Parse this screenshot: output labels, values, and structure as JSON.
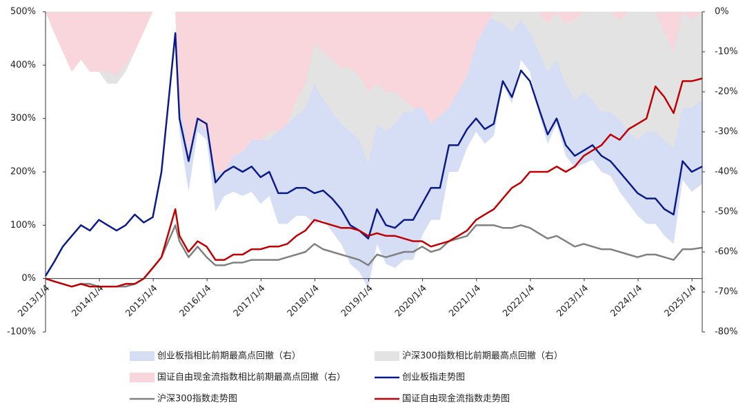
{
  "chart_data": {
    "type": "line",
    "x": [
      "2013/1/4",
      "2013/3/1",
      "2013/5/1",
      "2013/7/1",
      "2013/9/1",
      "2013/11/1",
      "2014/1/1",
      "2014/3/1",
      "2014/5/1",
      "2014/7/1",
      "2014/9/1",
      "2014/11/1",
      "2015/1/1",
      "2015/3/1",
      "2015/6/3",
      "2015/7/1",
      "2015/9/1",
      "2015/11/1",
      "2016/1/1",
      "2016/3/1",
      "2016/5/1",
      "2016/7/1",
      "2016/9/1",
      "2016/11/1",
      "2017/1/1",
      "2017/3/1",
      "2017/5/1",
      "2017/7/1",
      "2017/9/1",
      "2017/11/1",
      "2018/1/1",
      "2018/3/1",
      "2018/5/1",
      "2018/7/1",
      "2018/9/1",
      "2018/11/1",
      "2019/1/1",
      "2019/3/1",
      "2019/5/1",
      "2019/7/1",
      "2019/9/1",
      "2019/11/1",
      "2020/1/1",
      "2020/3/1",
      "2020/5/1",
      "2020/7/1",
      "2020/9/1",
      "2020/11/1",
      "2021/1/1",
      "2021/3/1",
      "2021/5/1",
      "2021/7/1",
      "2021/9/1",
      "2021/11/1",
      "2022/1/1",
      "2022/3/1",
      "2022/5/1",
      "2022/7/1",
      "2022/9/1",
      "2022/11/1",
      "2023/1/1",
      "2023/3/1",
      "2023/5/1",
      "2023/7/1",
      "2023/9/1",
      "2023/11/1",
      "2024/1/1",
      "2024/3/1",
      "2024/5/1",
      "2024/7/1",
      "2024/9/1",
      "2024/11/1",
      "2025/1/2",
      "2025/3/14"
    ],
    "xlim": [
      "2013/1/4",
      "2025/3/14"
    ],
    "xticks": [
      "2013/1/4",
      "2014/1/4",
      "2015/1/4",
      "2016/1/4",
      "2017/1/4",
      "2018/1/4",
      "2019/1/4",
      "2020/1/4",
      "2021/1/4",
      "2022/1/4",
      "2023/1/4",
      "2024/1/4",
      "2025/1/4"
    ],
    "ylim": [
      -100,
      500
    ],
    "yticks": [
      {
        "value": -100,
        "label": "-100%"
      },
      {
        "value": 0,
        "label": "0%"
      },
      {
        "value": 100,
        "label": "100%"
      },
      {
        "value": 200,
        "label": "200%"
      },
      {
        "value": 300,
        "label": "300%"
      },
      {
        "value": 400,
        "label": "400%"
      },
      {
        "value": 500,
        "label": "500%"
      }
    ],
    "y2lim": [
      -80,
      0
    ],
    "y2ticks": [
      {
        "value": -80,
        "label": "-80%"
      },
      {
        "value": -70,
        "label": "-70%"
      },
      {
        "value": -60,
        "label": "-60%"
      },
      {
        "value": -50,
        "label": "-50%"
      },
      {
        "value": -40,
        "label": "-40%"
      },
      {
        "value": -30,
        "label": "-30%"
      },
      {
        "value": -20,
        "label": "-20%"
      },
      {
        "value": -10,
        "label": "-10%"
      },
      {
        "value": 0,
        "label": "0%"
      }
    ],
    "grid": false,
    "series": [
      {
        "name": "创业板指相比前期最高点回撤（右）",
        "type": "area",
        "axis": "y2",
        "color": "#d5def5",
        "values": [
          0,
          0,
          0,
          0,
          0,
          -5,
          0,
          -5,
          -10,
          -5,
          0,
          -5,
          0,
          0,
          0,
          -30,
          -45,
          -30,
          -32,
          -50,
          -46,
          -45,
          -46,
          -45,
          -48,
          -46,
          -53,
          -53,
          -51,
          -51,
          -53,
          -52,
          -55,
          -58,
          -63,
          -65,
          -69,
          -58,
          -63,
          -64,
          -62,
          -62,
          -56,
          -52,
          -52,
          -40,
          -40,
          -34,
          -30,
          -33,
          -31,
          -18,
          -23,
          -12,
          -15,
          -25,
          -33,
          -28,
          -36,
          -39,
          -38,
          -37,
          -40,
          -41,
          -45,
          -48,
          -51,
          -53,
          -53,
          -56,
          -58,
          -42,
          -45,
          -43
        ]
      },
      {
        "name": "沪深300指数相比前期最高点回撤（右）",
        "type": "area",
        "axis": "y2",
        "color": "#e3e3e3",
        "values": [
          0,
          -5,
          -10,
          -15,
          -10,
          -12,
          -15,
          -18,
          -18,
          -15,
          -10,
          0,
          0,
          0,
          0,
          -15,
          -30,
          -20,
          -30,
          -38,
          -38,
          -35,
          -35,
          -32,
          -32,
          -32,
          -30,
          -28,
          -26,
          -24,
          -18,
          -22,
          -25,
          -28,
          -30,
          -32,
          -38,
          -28,
          -30,
          -28,
          -25,
          -25,
          -20,
          -25,
          -22,
          -15,
          -12,
          -10,
          0,
          0,
          -2,
          -3,
          -5,
          -2,
          -5,
          -10,
          -15,
          -12,
          -18,
          -22,
          -20,
          -22,
          -25,
          -25,
          -27,
          -30,
          -32,
          -30,
          -30,
          -32,
          -34,
          -24,
          -24,
          -22
        ]
      },
      {
        "name": "国证自由现金流指数相比前期最高点回撤（右）",
        "type": "area",
        "axis": "y2",
        "color": "#f9d6dc",
        "values": [
          0,
          -5,
          -10,
          -15,
          -12,
          -15,
          -15,
          -15,
          -16,
          -13,
          -10,
          -5,
          0,
          0,
          0,
          -22,
          -35,
          -27,
          -30,
          -40,
          -40,
          -36,
          -35,
          -32,
          -32,
          -30,
          -30,
          -28,
          -22,
          -18,
          -8,
          -10,
          -12,
          -14,
          -14,
          -16,
          -20,
          -18,
          -20,
          -20,
          -22,
          -24,
          -24,
          -28,
          -26,
          -24,
          -20,
          -16,
          -8,
          -4,
          0,
          0,
          0,
          0,
          0,
          0,
          -3,
          0,
          -3,
          -2,
          0,
          0,
          0,
          0,
          -2,
          0,
          0,
          0,
          0,
          -5,
          -10,
          0,
          -2,
          0
        ]
      },
      {
        "name": "创业板指走势图",
        "type": "line",
        "axis": "y",
        "color": "#0a1a8a",
        "values": [
          5,
          30,
          60,
          80,
          100,
          90,
          110,
          100,
          90,
          100,
          120,
          105,
          115,
          200,
          460,
          300,
          220,
          300,
          290,
          180,
          200,
          210,
          200,
          210,
          190,
          200,
          160,
          160,
          170,
          170,
          160,
          165,
          150,
          130,
          100,
          90,
          75,
          130,
          100,
          95,
          110,
          110,
          140,
          170,
          170,
          250,
          250,
          280,
          300,
          280,
          290,
          370,
          340,
          390,
          370,
          320,
          270,
          300,
          250,
          230,
          240,
          250,
          230,
          220,
          200,
          180,
          160,
          150,
          150,
          130,
          120,
          220,
          200,
          210
        ]
      },
      {
        "name": "沪深300指数走势图",
        "type": "line",
        "axis": "y",
        "color": "#808080",
        "values": [
          0,
          -5,
          -10,
          -15,
          -10,
          -10,
          -15,
          -15,
          -15,
          -15,
          -10,
          0,
          20,
          40,
          100,
          70,
          40,
          60,
          40,
          25,
          25,
          30,
          30,
          35,
          35,
          35,
          35,
          40,
          45,
          50,
          65,
          55,
          50,
          45,
          40,
          35,
          25,
          45,
          40,
          45,
          50,
          50,
          60,
          50,
          55,
          70,
          75,
          80,
          100,
          100,
          100,
          95,
          95,
          100,
          95,
          85,
          75,
          80,
          70,
          60,
          65,
          60,
          55,
          55,
          50,
          45,
          40,
          45,
          45,
          40,
          35,
          55,
          55,
          58
        ]
      },
      {
        "name": "国证自由现金流指数走势图",
        "type": "line",
        "axis": "y",
        "color": "#c00000",
        "values": [
          0,
          -5,
          -10,
          -15,
          -10,
          -15,
          -15,
          -15,
          -15,
          -10,
          -10,
          0,
          20,
          40,
          130,
          80,
          50,
          70,
          60,
          35,
          35,
          45,
          45,
          55,
          55,
          60,
          60,
          65,
          80,
          90,
          110,
          105,
          100,
          95,
          95,
          90,
          80,
          85,
          80,
          80,
          75,
          70,
          70,
          60,
          65,
          70,
          80,
          90,
          110,
          120,
          130,
          150,
          170,
          180,
          200,
          200,
          200,
          210,
          200,
          210,
          230,
          240,
          250,
          270,
          260,
          280,
          290,
          300,
          360,
          340,
          310,
          370,
          370,
          375
        ]
      }
    ]
  }
}
